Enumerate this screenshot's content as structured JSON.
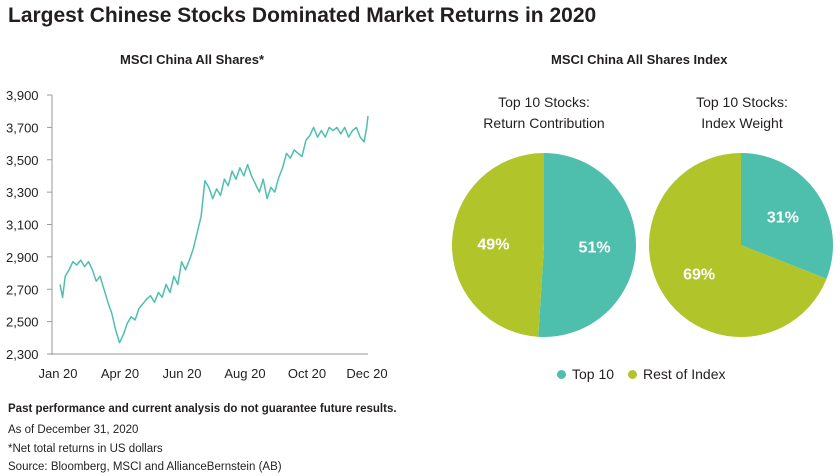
{
  "title": "Largest Chinese Stocks Dominated Market Returns in 2020",
  "colors": {
    "teal": "#4fbfad",
    "green": "#b1c42a",
    "axis": "#9a9a9a",
    "text": "#231f20"
  },
  "chart_data": [
    {
      "type": "line",
      "title": "MSCI China All Shares*",
      "ylim": [
        2300,
        3900
      ],
      "yticks": [
        2300,
        2500,
        2700,
        2900,
        3100,
        3300,
        3500,
        3700,
        3900
      ],
      "ytick_labels": [
        "2,300",
        "2,500",
        "2,700",
        "2,900",
        "3,100",
        "3,300",
        "3,500",
        "3,700",
        "3,900"
      ],
      "xticks": [
        "Jan 20",
        "Apr 20",
        "Jun 20",
        "Aug 20",
        "Oct 20",
        "Dec 20"
      ],
      "xtick_months": [
        0,
        3,
        5,
        7,
        9,
        11
      ],
      "xlim_months": [
        0,
        11.9
      ],
      "grid": false,
      "series": [
        {
          "x": [
            0.0,
            0.1,
            0.2,
            0.35,
            0.5,
            0.65,
            0.8,
            0.95,
            1.1,
            1.25,
            1.4,
            1.55,
            1.7,
            1.85,
            2.0,
            2.15,
            2.3,
            2.45,
            2.6,
            2.75,
            2.9,
            3.05,
            3.2,
            3.35,
            3.5,
            3.65,
            3.8,
            3.95,
            4.1,
            4.25,
            4.4,
            4.55,
            4.7,
            4.85,
            5.0,
            5.15,
            5.3,
            5.45,
            5.6,
            5.75,
            5.9,
            6.05,
            6.2,
            6.35,
            6.5,
            6.65,
            6.8,
            6.95,
            7.1,
            7.25,
            7.4,
            7.55,
            7.7,
            7.85,
            8.0,
            8.15,
            8.3,
            8.45,
            8.6,
            8.75,
            8.9,
            9.05,
            9.2,
            9.35,
            9.5,
            9.65,
            9.8,
            9.95,
            10.1,
            10.25,
            10.4,
            10.55,
            10.7,
            10.85,
            11.0,
            11.15,
            11.3,
            11.45,
            11.6,
            11.75,
            11.85,
            11.9
          ],
          "values": [
            2730,
            2650,
            2780,
            2820,
            2870,
            2850,
            2880,
            2840,
            2870,
            2820,
            2750,
            2780,
            2700,
            2620,
            2550,
            2450,
            2370,
            2420,
            2490,
            2530,
            2510,
            2580,
            2610,
            2640,
            2660,
            2620,
            2680,
            2650,
            2730,
            2680,
            2780,
            2730,
            2870,
            2820,
            2880,
            2950,
            3050,
            3150,
            3370,
            3330,
            3260,
            3320,
            3280,
            3380,
            3340,
            3430,
            3380,
            3450,
            3400,
            3470,
            3400,
            3350,
            3300,
            3380,
            3260,
            3330,
            3300,
            3390,
            3450,
            3540,
            3510,
            3560,
            3540,
            3520,
            3620,
            3650,
            3700,
            3640,
            3680,
            3640,
            3700,
            3680,
            3700,
            3660,
            3700,
            3640,
            3680,
            3700,
            3640,
            3610,
            3700,
            3770
          ]
        }
      ]
    },
    {
      "type": "pie",
      "group_title": "MSCI China All Shares Index",
      "title_line1": "Top 10 Stocks:",
      "title_line2": "Return Contribution",
      "slices": [
        {
          "label": "Top 10",
          "value": 51,
          "text": "51%"
        },
        {
          "label": "Rest of Index",
          "value": 49,
          "text": "49%"
        }
      ]
    },
    {
      "type": "pie",
      "title_line1": "Top 10 Stocks:",
      "title_line2": "Index Weight",
      "slices": [
        {
          "label": "Top 10",
          "value": 31,
          "text": "31%"
        },
        {
          "label": "Rest of Index",
          "value": 69,
          "text": "69%"
        }
      ]
    }
  ],
  "legend": [
    "Top 10",
    "Rest of Index"
  ],
  "footnotes": {
    "disclaimer": "Past performance and current analysis do not guarantee future results.",
    "as_of": "As of December 31, 2020",
    "note": "*Net total returns in US dollars",
    "source": "Source: Bloomberg, MSCI and AllianceBernstein (AB)"
  }
}
